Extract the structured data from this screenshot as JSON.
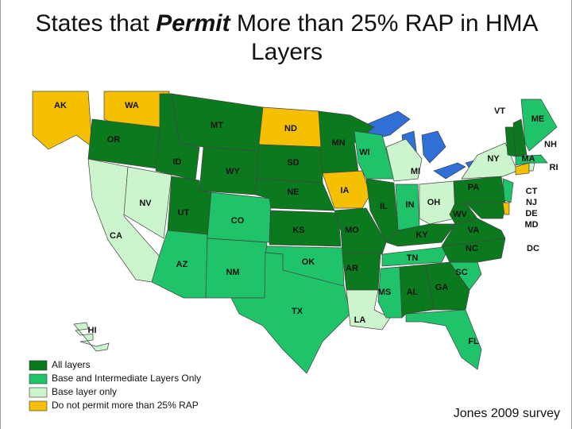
{
  "title": {
    "before": "States that",
    "emphasis": "Permit",
    "after": "More than 25% RAP in HMA Layers"
  },
  "legend": [
    {
      "label": "All layers",
      "color": "#0b7a1f"
    },
    {
      "label": "Base and Intermediate Layers Only",
      "color": "#1fc46a"
    },
    {
      "label": "Base layer only",
      "color": "#cdf5cd"
    },
    {
      "label": "Do not permit more than 25% RAP",
      "color": "#f5c000"
    }
  ],
  "states": [
    {
      "label": "AK",
      "color": "#f5c000"
    },
    {
      "label": "WA",
      "color": "#f5c000"
    },
    {
      "label": "OR",
      "color": "#0b7a1f"
    },
    {
      "label": "CA",
      "color": "#cdf5cd"
    },
    {
      "label": "NV",
      "color": "#cdf5cd"
    },
    {
      "label": "ID",
      "color": "#0b7a1f"
    },
    {
      "label": "MT",
      "color": "#0b7a1f"
    },
    {
      "label": "WY",
      "color": "#0b7a1f"
    },
    {
      "label": "UT",
      "color": "#0b7a1f"
    },
    {
      "label": "CO",
      "color": "#1fc46a"
    },
    {
      "label": "AZ",
      "color": "#1fc46a"
    },
    {
      "label": "NM",
      "color": "#1fc46a"
    },
    {
      "label": "ND",
      "color": "#f5c000"
    },
    {
      "label": "SD",
      "color": "#0b7a1f"
    },
    {
      "label": "NE",
      "color": "#0b7a1f"
    },
    {
      "label": "KS",
      "color": "#0b7a1f"
    },
    {
      "label": "OK",
      "color": "#1fc46a"
    },
    {
      "label": "TX",
      "color": "#1fc46a"
    },
    {
      "label": "MN",
      "color": "#0b7a1f"
    },
    {
      "label": "IA",
      "color": "#f5c000"
    },
    {
      "label": "MO",
      "color": "#0b7a1f"
    },
    {
      "label": "AR",
      "color": "#0b7a1f"
    },
    {
      "label": "LA",
      "color": "#cdf5cd"
    },
    {
      "label": "WI",
      "color": "#1fc46a"
    },
    {
      "label": "IL",
      "color": "#0b7a1f"
    },
    {
      "label": "MI",
      "color": "#cdf5cd"
    },
    {
      "label": "IN",
      "color": "#1fc46a"
    },
    {
      "label": "OH",
      "color": "#cdf5cd"
    },
    {
      "label": "KY",
      "color": "#0b7a1f"
    },
    {
      "label": "TN",
      "color": "#1fc46a"
    },
    {
      "label": "MS",
      "color": "#1fc46a"
    },
    {
      "label": "AL",
      "color": "#0b7a1f"
    },
    {
      "label": "GA",
      "color": "#0b7a1f"
    },
    {
      "label": "FL",
      "color": "#1fc46a"
    },
    {
      "label": "SC",
      "color": "#1fc46a"
    },
    {
      "label": "NC",
      "color": "#0b7a1f"
    },
    {
      "label": "VA",
      "color": "#0b7a1f"
    },
    {
      "label": "WV",
      "color": "#0b7a1f"
    },
    {
      "label": "PA",
      "color": "#0b7a1f"
    },
    {
      "label": "NY",
      "color": "#cdf5cd"
    },
    {
      "label": "MD",
      "color": "#0b7a1f"
    },
    {
      "label": "DE",
      "color": "#f5c000"
    },
    {
      "label": "NJ",
      "color": "#1fc46a"
    },
    {
      "label": "CT",
      "color": "#f5c000"
    },
    {
      "label": "RI",
      "color": "#cdf5cd"
    },
    {
      "label": "MA",
      "color": "#1fc46a"
    },
    {
      "label": "VT",
      "color": "#0b7a1f"
    },
    {
      "label": "NH",
      "color": "#0b7a1f"
    },
    {
      "label": "ME",
      "color": "#1fc46a"
    },
    {
      "label": "HI",
      "color": "#cdf5cd"
    },
    {
      "label": "DC"
    }
  ],
  "source": "Jones 2009 survey"
}
